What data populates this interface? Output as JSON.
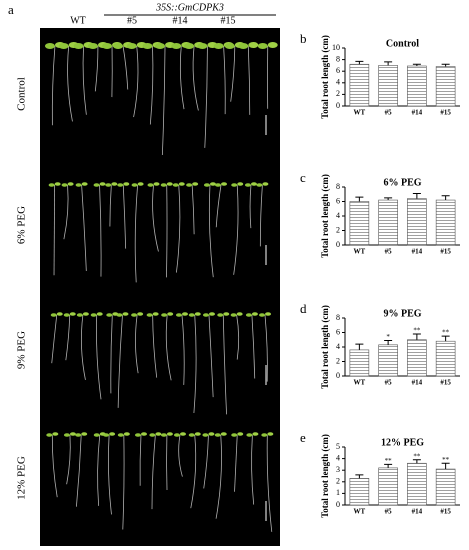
{
  "photo_panel": {
    "letter": "a",
    "genotype_header": "35S::GmCDPK3",
    "columns": [
      "WT",
      "#5",
      "#14",
      "#15"
    ],
    "rows": [
      "Control",
      "6% PEG",
      "9% PEG",
      "12% PEG"
    ]
  },
  "chart_data": [
    {
      "type": "bar",
      "letter": "b",
      "title": "Control",
      "y_label": "Total root length (cm)",
      "categories": [
        "WT",
        "#5",
        "#14",
        "#15"
      ],
      "values": [
        7.2,
        7.0,
        6.9,
        6.8
      ],
      "errors": [
        0.5,
        0.6,
        0.3,
        0.4
      ],
      "annotations": [
        null,
        null,
        null,
        null
      ],
      "ylim": [
        0,
        10
      ],
      "yticks": [
        0,
        2,
        4,
        6,
        8,
        10
      ]
    },
    {
      "type": "bar",
      "letter": "c",
      "title": "6% PEG",
      "y_label": "Total root length (cm)",
      "categories": [
        "WT",
        "#5",
        "#14",
        "#15"
      ],
      "values": [
        6.0,
        6.2,
        6.4,
        6.2
      ],
      "errors": [
        0.6,
        0.3,
        0.7,
        0.6
      ],
      "annotations": [
        null,
        null,
        null,
        null
      ],
      "ylim": [
        0,
        8
      ],
      "yticks": [
        0,
        2,
        4,
        6,
        8
      ]
    },
    {
      "type": "bar",
      "letter": "d",
      "title": "9% PEG",
      "y_label": "Total root length (cm)",
      "categories": [
        "WT",
        "#5",
        "#14",
        "#15"
      ],
      "values": [
        3.6,
        4.3,
        5.0,
        4.8
      ],
      "errors": [
        0.8,
        0.6,
        0.8,
        0.7
      ],
      "annotations": [
        null,
        "*",
        "**",
        "**"
      ],
      "ylim": [
        0,
        8
      ],
      "yticks": [
        0,
        2,
        4,
        6,
        8
      ]
    },
    {
      "type": "bar",
      "letter": "e",
      "title": "12% PEG",
      "y_label": "Total root length (cm)",
      "categories": [
        "WT",
        "#5",
        "#14",
        "#15"
      ],
      "values": [
        2.3,
        3.2,
        3.6,
        3.1
      ],
      "errors": [
        0.3,
        0.3,
        0.3,
        0.5
      ],
      "annotations": [
        null,
        "**",
        "**",
        "**"
      ],
      "ylim": [
        0,
        5
      ],
      "yticks": [
        0,
        1,
        2,
        3,
        4,
        5
      ]
    }
  ]
}
